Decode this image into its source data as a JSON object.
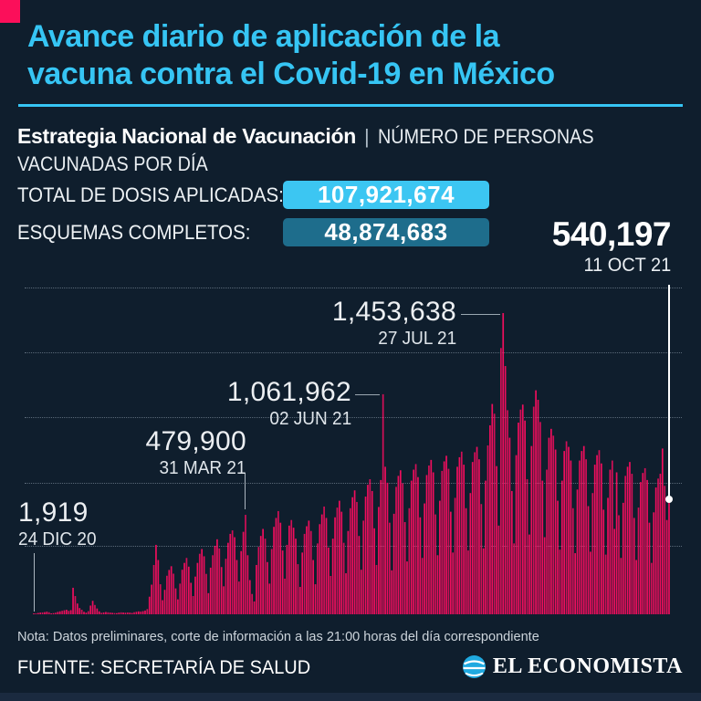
{
  "colors": {
    "background": "#0f1e2d",
    "accent_pink": "#fb0f5a",
    "title_cyan": "#36c5f4",
    "badge_cyan": "#3cc6f2",
    "badge_teal": "#1e6d8c",
    "bar_pink": "#ee0e5d",
    "bottom_strip": "#1a2a3f"
  },
  "header": {
    "title_line1": "Avance diario de aplicación de la",
    "title_line2": "vacuna contra el Covid-19 en México"
  },
  "subtitle": {
    "bold": "Estrategia Nacional de Vacunación",
    "separator": "|",
    "light_line1": "NÚMERO DE PERSONAS",
    "light_line2": "VACUNADAS POR DÍA"
  },
  "stats": {
    "doses": {
      "label": "TOTAL DE DOSIS APLICADAS:",
      "value": "107,921,674"
    },
    "complete": {
      "label": "ESQUEMAS COMPLETOS:",
      "value": "48,874,683"
    }
  },
  "latest": {
    "value": "540,197",
    "date": "11 OCT 21"
  },
  "annotations": {
    "dec": {
      "value": "1,919",
      "date": "24 DIC 20"
    },
    "mar": {
      "value": "479,900",
      "date": "31 MAR 21"
    },
    "jun": {
      "value": "1,061,962",
      "date": "02 JUN 21"
    },
    "jul": {
      "value": "1,453,638",
      "date": "27 JUL 21"
    }
  },
  "footer": {
    "note": "Nota: Datos preliminares, corte de información a las 21:00 horas del día correspondiente",
    "source": "FUENTE: SECRETARÍA DE SALUD",
    "brand": "EL ECONOMISTA"
  },
  "chart_data": {
    "type": "bar",
    "title": "Número de personas vacunadas por día en México",
    "x_start": "24 DIC 20",
    "x_end": "11 OCT 21",
    "ylabel": "personas vacunadas por día",
    "ylim": [
      0,
      1500000
    ],
    "grid": "horizontal-dotted",
    "legend": "none",
    "bar_color": "#ee0e5d",
    "annotated_points": [
      {
        "date": "24 DIC 20",
        "value": 1919
      },
      {
        "date": "31 MAR 21",
        "value": 479900
      },
      {
        "date": "02 JUN 21",
        "value": 1061962
      },
      {
        "date": "27 JUL 21",
        "value": 1453638
      },
      {
        "date": "11 OCT 21",
        "value": 540197
      }
    ],
    "daily_values": [
      1919,
      4200,
      6500,
      8200,
      9100,
      10400,
      12600,
      9800,
      4200,
      5600,
      7800,
      11500,
      14200,
      16800,
      19500,
      22000,
      16500,
      20000,
      128000,
      88000,
      52000,
      30000,
      22000,
      12000,
      8000,
      15000,
      42000,
      65000,
      45000,
      28000,
      14000,
      7000,
      9000,
      11000,
      9500,
      8000,
      7000,
      6000,
      5500,
      8000,
      9500,
      8500,
      7500,
      9000,
      8000,
      6500,
      10000,
      12000,
      14000,
      13000,
      15000,
      18000,
      25000,
      85000,
      143000,
      238000,
      335000,
      262000,
      145000,
      68000,
      118000,
      186000,
      214000,
      232000,
      196000,
      125000,
      72000,
      148000,
      215000,
      248000,
      272000,
      230000,
      152000,
      88000,
      182000,
      248000,
      292000,
      315000,
      280000,
      195000,
      102000,
      225000,
      285000,
      330000,
      362000,
      318000,
      228000,
      135000,
      268000,
      345000,
      388000,
      405000,
      372000,
      262000,
      158000,
      305000,
      398000,
      479900,
      285000,
      165000,
      98000,
      62000,
      238000,
      325000,
      378000,
      412000,
      365000,
      252000,
      148000,
      315000,
      422000,
      465000,
      498000,
      442000,
      308000,
      172000,
      335000,
      428000,
      455000,
      418000,
      365000,
      242000,
      132000,
      298000,
      388000,
      425000,
      452000,
      402000,
      262000,
      145000,
      342000,
      435000,
      482000,
      520000,
      465000,
      322000,
      185000,
      365000,
      468000,
      515000,
      548000,
      495000,
      345000,
      198000,
      402000,
      512000,
      565000,
      598000,
      542000,
      378000,
      215000,
      452000,
      568000,
      625000,
      652000,
      595000,
      415000,
      238000,
      518000,
      648000,
      1061962,
      712000,
      635000,
      442000,
      212000,
      485000,
      615000,
      668000,
      695000,
      632000,
      445000,
      255000,
      512000,
      645000,
      698000,
      725000,
      662000,
      468000,
      272000,
      535000,
      672000,
      718000,
      745000,
      685000,
      482000,
      285000,
      548000,
      692000,
      738000,
      765000,
      702000,
      495000,
      298000,
      562000,
      712000,
      758000,
      785000,
      722000,
      512000,
      308000,
      585000,
      735000,
      782000,
      808000,
      748000,
      532000,
      318000,
      645000,
      815000,
      912000,
      1015000,
      968000,
      715000,
      428000,
      1285000,
      1453638,
      1198000,
      985000,
      852000,
      595000,
      342000,
      768000,
      925000,
      988000,
      1012000,
      935000,
      652000,
      385000,
      812000,
      1002000,
      1081000,
      1035000,
      928000,
      645000,
      372000,
      698000,
      852000,
      895000,
      862000,
      795000,
      548000,
      312000,
      645000,
      788000,
      835000,
      808000,
      742000,
      512000,
      295000,
      602000,
      742000,
      788000,
      812000,
      748000,
      522000,
      302000,
      585000,
      722000,
      768000,
      792000,
      728000,
      505000,
      288000,
      562000,
      698000,
      742000,
      412000,
      685000,
      478000,
      272000,
      538000,
      668000,
      712000,
      735000,
      678000,
      465000,
      262000,
      515000,
      638000,
      682000,
      705000,
      648000,
      442000,
      248000,
      492000,
      612000,
      655000,
      678000,
      800000,
      620000,
      455000,
      540197
    ]
  }
}
